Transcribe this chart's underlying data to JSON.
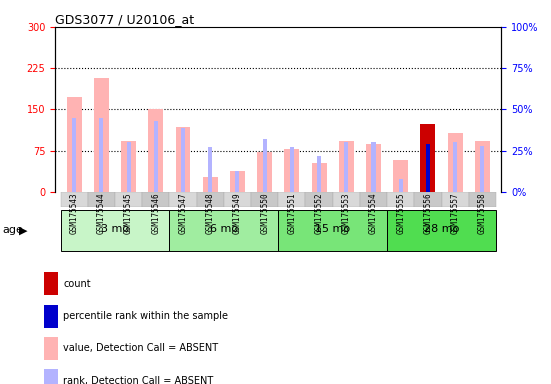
{
  "title": "GDS3077 / U20106_at",
  "samples": [
    "GSM175543",
    "GSM175544",
    "GSM175545",
    "GSM175546",
    "GSM175547",
    "GSM175548",
    "GSM175549",
    "GSM175550",
    "GSM175551",
    "GSM175552",
    "GSM175553",
    "GSM175554",
    "GSM175555",
    "GSM175556",
    "GSM175557",
    "GSM175558"
  ],
  "age_groups": [
    {
      "label": "3 mo",
      "start": 0,
      "end": 4,
      "color": "#c8f5c8"
    },
    {
      "label": "6 mo",
      "start": 4,
      "end": 8,
      "color": "#a0eda0"
    },
    {
      "label": "15 mo",
      "start": 8,
      "end": 12,
      "color": "#78e578"
    },
    {
      "label": "28 mo",
      "start": 12,
      "end": 16,
      "color": "#50dd50"
    }
  ],
  "value_bars": [
    172,
    207,
    93,
    150,
    118,
    27,
    38,
    73,
    78,
    53,
    93,
    88,
    58,
    123,
    108,
    93
  ],
  "rank_bars_pct": [
    45,
    45,
    30,
    43,
    39,
    27,
    13,
    32,
    27,
    22,
    30,
    30,
    8,
    29,
    30,
    28
  ],
  "count_bar_idx": 13,
  "count_bar_val": 123,
  "percentile_bar_idx": 13,
  "percentile_bar_pct": 29,
  "ylim_left": [
    0,
    300
  ],
  "ylim_right": [
    0,
    100
  ],
  "yticks_left": [
    0,
    75,
    150,
    225,
    300
  ],
  "yticks_right": [
    0,
    25,
    50,
    75,
    100
  ],
  "hlines": [
    75,
    150,
    225
  ],
  "value_color": "#ffb3b3",
  "rank_color": "#b3b3ff",
  "count_color": "#cc0000",
  "percentile_color": "#0000cc",
  "legend_items": [
    {
      "color": "#cc0000",
      "label": "count"
    },
    {
      "color": "#0000cc",
      "label": "percentile rank within the sample"
    },
    {
      "color": "#ffb3b3",
      "label": "value, Detection Call = ABSENT"
    },
    {
      "color": "#b3b3ff",
      "label": "rank, Detection Call = ABSENT"
    }
  ]
}
